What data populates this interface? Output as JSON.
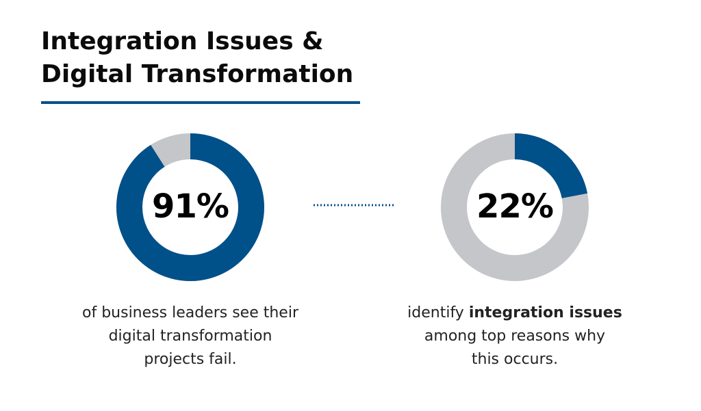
{
  "title": [
    "Integration Issues &",
    "Digital Transformation"
  ],
  "chart_data": [
    {
      "type": "donut",
      "values": [
        91
      ],
      "value_labels": [
        "91%"
      ],
      "color": "#005089",
      "track_color": "#c5c6ca",
      "caption": [
        [
          {
            "text": "of business leaders see their"
          }
        ],
        [
          {
            "text": "digital transformation"
          }
        ],
        [
          {
            "text": "projects fail."
          }
        ]
      ]
    },
    {
      "type": "donut",
      "values": [
        22
      ],
      "value_labels": [
        "22%"
      ],
      "color": "#005089",
      "track_color": "#c5c6ca",
      "caption": [
        [
          {
            "text": "identify "
          },
          {
            "text": "integration issues",
            "bold": true
          }
        ],
        [
          {
            "text": "among top reasons why"
          }
        ],
        [
          {
            "text": "this occurs."
          }
        ]
      ]
    }
  ]
}
